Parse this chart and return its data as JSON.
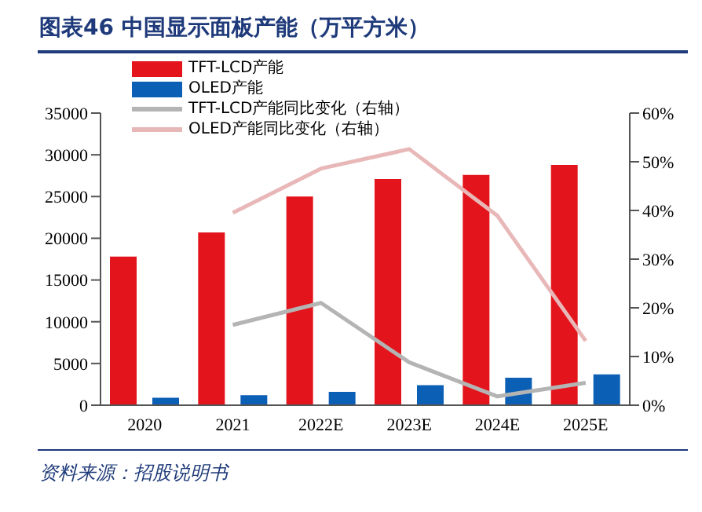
{
  "chart_data": {
    "type": "bar",
    "title": "图表46 中国显示面板产能（万平方米）",
    "categories": [
      "2020",
      "2021",
      "2022E",
      "2023E",
      "2024E",
      "2025E"
    ],
    "series": [
      {
        "name": "TFT-LCD产能",
        "color": "#e3141b",
        "values": [
          17800,
          20700,
          25000,
          27100,
          27600,
          28800
        ]
      },
      {
        "name": "OLED产能",
        "color": "#0b5fb5",
        "values": [
          900,
          1200,
          1600,
          2400,
          3300,
          3700
        ]
      },
      {
        "name": "TFT-LCD产能同比变化（右轴）",
        "type": "line",
        "axis": "y2",
        "color": "#b4b4b4",
        "values": [
          null,
          16.5,
          21.0,
          8.8,
          1.8,
          4.6
        ]
      },
      {
        "name": "OLED产能同比变化（右轴）",
        "type": "line",
        "axis": "y2",
        "color": "#e8b8b8",
        "values": [
          null,
          39.5,
          48.6,
          52.6,
          38.9,
          13.2
        ]
      }
    ],
    "ylim": [
      0,
      35000
    ],
    "yticks": [
      0,
      5000,
      10000,
      15000,
      20000,
      25000,
      30000,
      35000
    ],
    "y2lim": [
      0,
      60
    ],
    "y2ticks": [
      {
        "value": 0,
        "label": "0%"
      },
      {
        "value": 10,
        "label": "10%"
      },
      {
        "value": 20,
        "label": "20%"
      },
      {
        "value": 30,
        "label": "30%"
      },
      {
        "value": 40,
        "label": "40%"
      },
      {
        "value": 50,
        "label": "50%"
      },
      {
        "value": 60,
        "label": "60%"
      }
    ],
    "grid": false,
    "legend": "top left",
    "marker": "none",
    "annotations": [
      "资料来源：招股说明书"
    ]
  }
}
